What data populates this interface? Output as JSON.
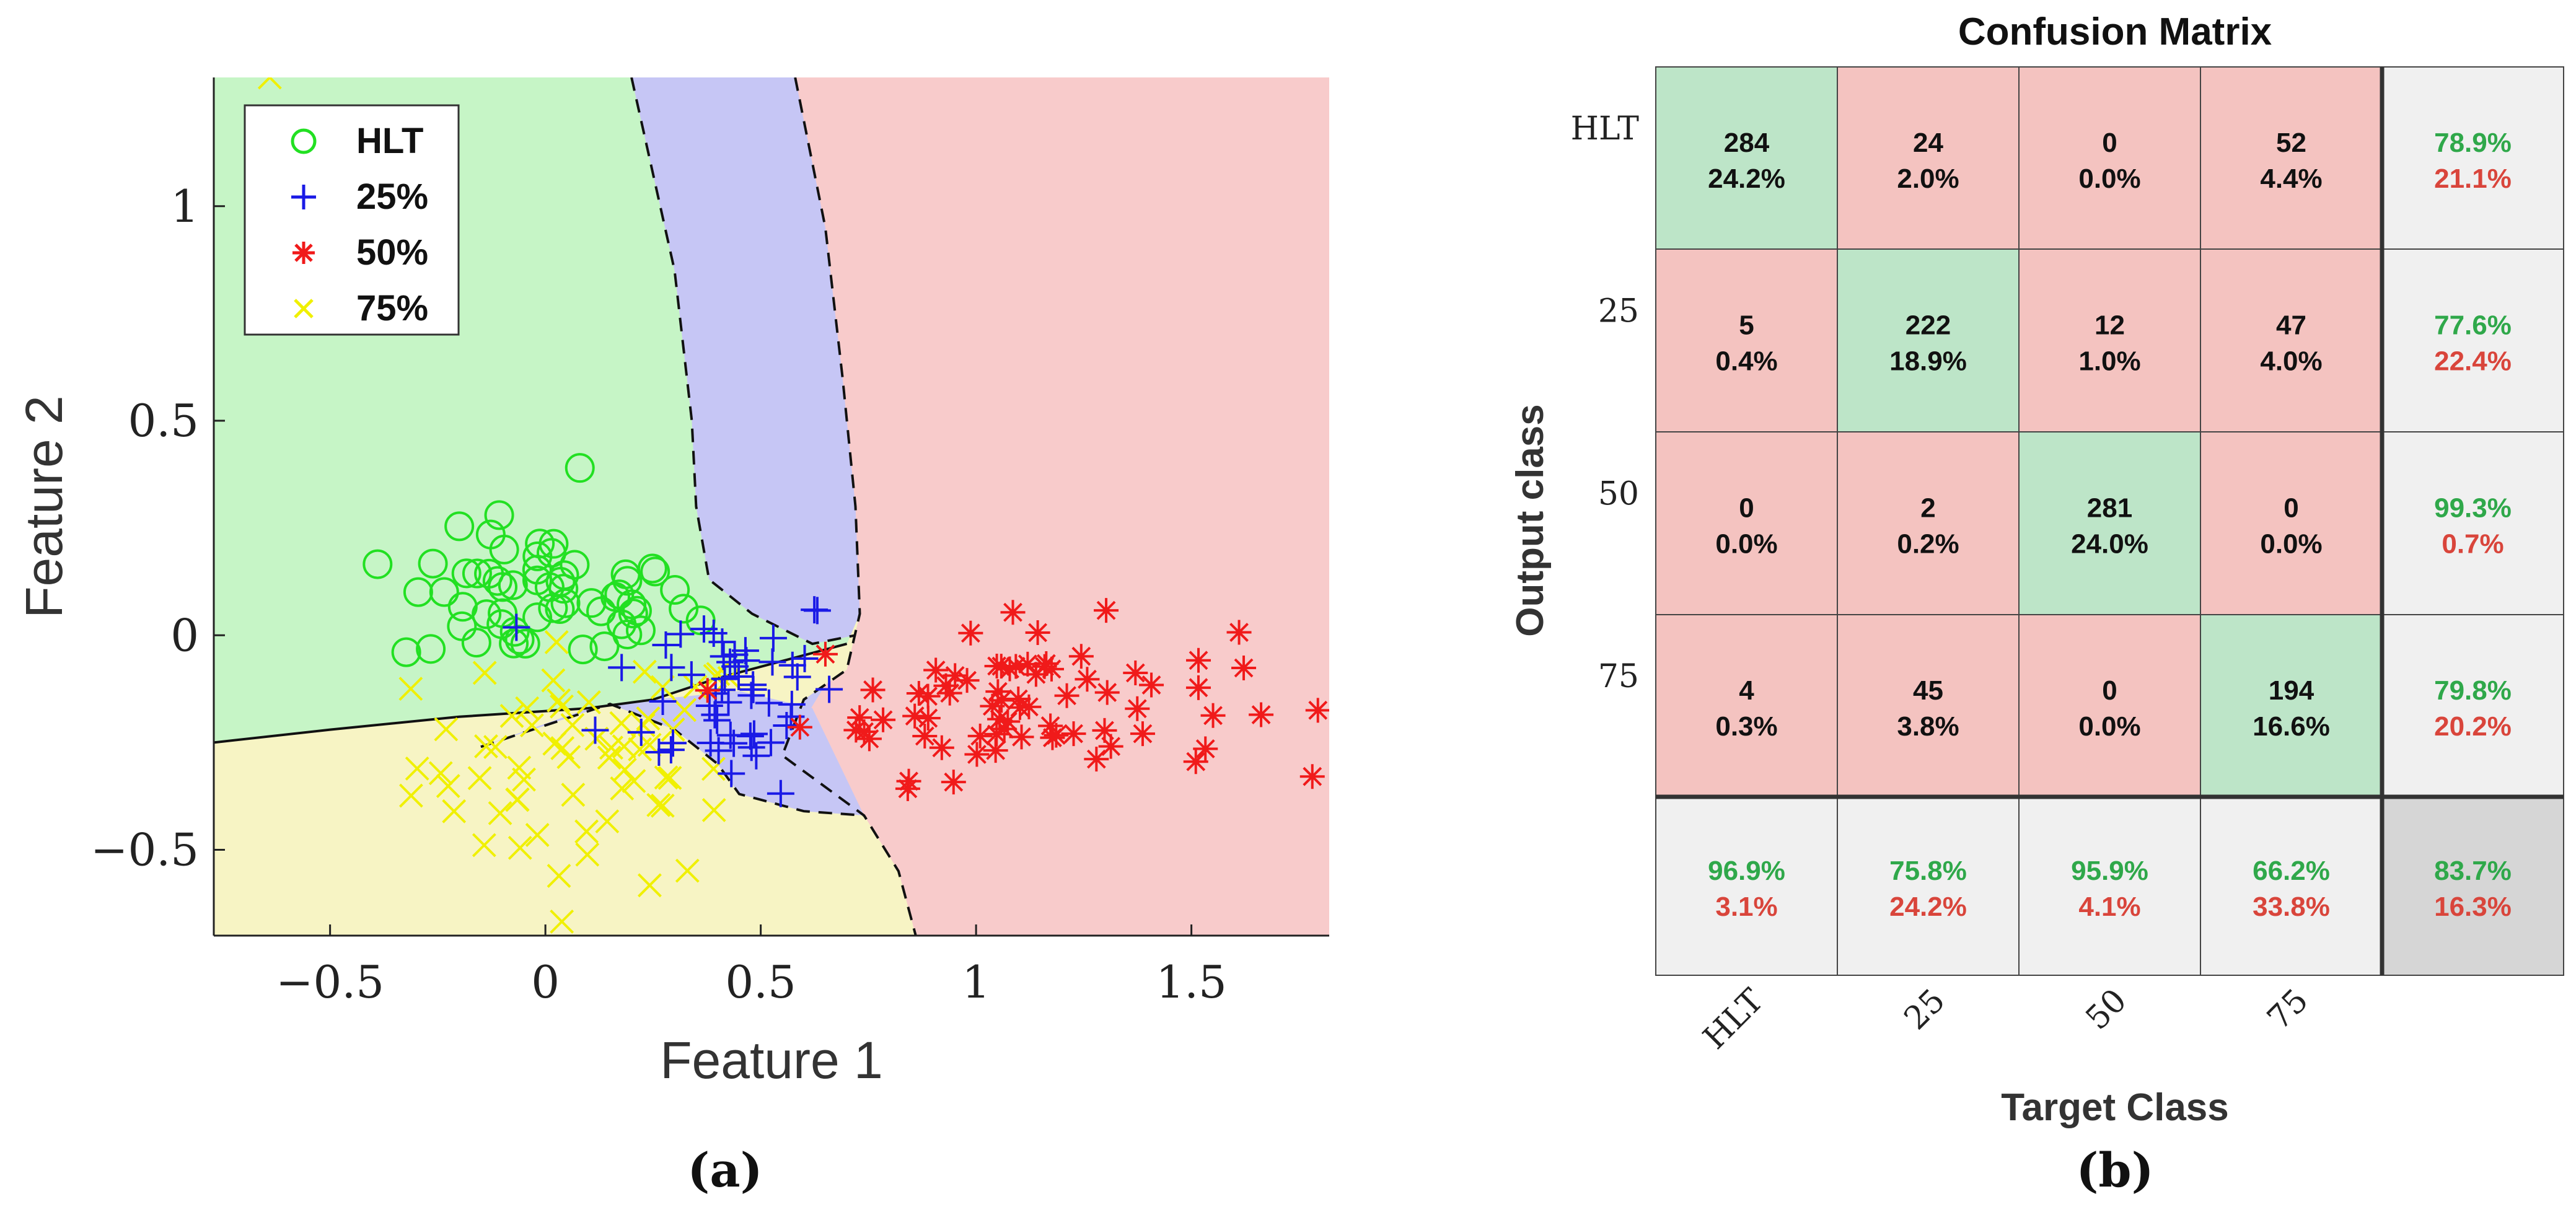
{
  "colors": {
    "region_hlt": "#c6f5c6",
    "region_25": "#c6c6f5",
    "region_50": "#f8cbcb",
    "region_75": "#f7f4c4",
    "hlt": "#22e022",
    "c25": "#1a1ae6",
    "c50": "#f01a1a",
    "c75": "#f0f000",
    "cm_correct": "#bde5c8",
    "cm_wrong": "#f4c3c0",
    "cm_summary": "#f0f0f0",
    "cm_total": "#d6d6d6",
    "pct_green": "#2fa84a",
    "pct_red": "#d9453b"
  },
  "chart_data": [
    {
      "type": "scatter",
      "panel_label": "(a)",
      "xlabel": "Feature 1",
      "ylabel": "Feature 2",
      "xlim": [
        -0.77,
        1.82
      ],
      "ylim": [
        -0.7,
        1.3
      ],
      "xticks": [
        -0.5,
        0,
        0.5,
        1,
        1.5
      ],
      "xtick_labels": [
        "−0.5",
        "0",
        "0.5",
        "1",
        "1.5"
      ],
      "yticks": [
        -0.5,
        0,
        0.5,
        1
      ],
      "ytick_labels": [
        "−0.5",
        "0",
        "0.5",
        "1"
      ],
      "legend_position": "top-left",
      "series": [
        {
          "name": "HLT",
          "marker": "circle",
          "color_key": "hlt",
          "center": [
            0.0,
            0.08
          ],
          "spread": [
            0.17,
            0.08
          ],
          "count": 60
        },
        {
          "name": "25%",
          "marker": "plus",
          "color_key": "c25",
          "center": [
            0.42,
            -0.12
          ],
          "spread": [
            0.14,
            0.12
          ],
          "count": 55
        },
        {
          "name": "50%",
          "marker": "asterisk",
          "color_key": "c50",
          "center": [
            1.1,
            -0.15
          ],
          "spread": [
            0.25,
            0.09
          ],
          "count": 75
        },
        {
          "name": "75%",
          "marker": "x",
          "color_key": "c75",
          "center": [
            0.1,
            -0.3
          ],
          "spread": [
            0.2,
            0.14
          ],
          "count": 65
        }
      ],
      "outliers": [
        {
          "series": "75%",
          "x": -0.64,
          "y": 1.3
        },
        {
          "series": "HLT",
          "x": 0.08,
          "y": 0.39
        }
      ],
      "boundaries": [
        {
          "between": "HLT/25%",
          "points": [
            [
              0.2,
              1.3
            ],
            [
              0.3,
              0.85
            ],
            [
              0.34,
              0.5
            ],
            [
              0.35,
              0.3
            ],
            [
              0.38,
              0.13
            ],
            [
              0.48,
              0.05
            ],
            [
              0.62,
              -0.02
            ],
            [
              0.72,
              0.0
            ]
          ]
        },
        {
          "between": "25%/50%",
          "points": [
            [
              0.58,
              1.3
            ],
            [
              0.65,
              0.95
            ],
            [
              0.69,
              0.6
            ],
            [
              0.72,
              0.3
            ],
            [
              0.73,
              0.05
            ],
            [
              0.7,
              -0.08
            ],
            [
              0.6,
              -0.15
            ],
            [
              0.55,
              -0.28
            ],
            [
              0.74,
              -0.42
            ],
            [
              0.82,
              -0.55
            ],
            [
              0.86,
              -0.7
            ]
          ]
        },
        {
          "between": "HLT/75%",
          "points": [
            [
              -0.77,
              -0.25
            ],
            [
              -0.5,
              -0.22
            ],
            [
              -0.2,
              -0.19
            ],
            [
              0.1,
              -0.17
            ],
            [
              0.25,
              -0.15
            ],
            [
              0.4,
              -0.1
            ],
            [
              0.55,
              -0.06
            ],
            [
              0.7,
              -0.02
            ]
          ]
        },
        {
          "between": "75%/25% pocket",
          "points": [
            [
              -0.15,
              -0.26
            ],
            [
              0.0,
              -0.21
            ],
            [
              0.15,
              -0.16
            ],
            [
              0.3,
              -0.22
            ],
            [
              0.4,
              -0.3
            ],
            [
              0.45,
              -0.37
            ],
            [
              0.6,
              -0.41
            ],
            [
              0.74,
              -0.42
            ]
          ]
        }
      ]
    },
    {
      "type": "heatmap",
      "panel_label": "(b)",
      "title": "Confusion Matrix",
      "xlabel": "Target Class",
      "ylabel": "Output class",
      "row_labels": [
        "HLT",
        "25",
        "50",
        "75"
      ],
      "col_labels": [
        "HLT",
        "25",
        "50",
        "75"
      ],
      "counts": [
        [
          284,
          24,
          0,
          52
        ],
        [
          5,
          222,
          12,
          47
        ],
        [
          0,
          2,
          281,
          0
        ],
        [
          4,
          45,
          0,
          194
        ]
      ],
      "percents": [
        [
          "24.2%",
          "2.0%",
          "0.0%",
          "4.4%"
        ],
        [
          "0.4%",
          "18.9%",
          "1.0%",
          "4.0%"
        ],
        [
          "0.0%",
          "0.2%",
          "24.0%",
          "0.0%"
        ],
        [
          "0.3%",
          "3.8%",
          "0.0%",
          "16.6%"
        ]
      ],
      "row_summary": [
        [
          "78.9%",
          "21.1%"
        ],
        [
          "77.6%",
          "22.4%"
        ],
        [
          "99.3%",
          "0.7%"
        ],
        [
          "79.8%",
          "20.2%"
        ]
      ],
      "col_summary": [
        [
          "96.9%",
          "3.1%"
        ],
        [
          "75.8%",
          "24.2%"
        ],
        [
          "95.9%",
          "4.1%"
        ],
        [
          "66.2%",
          "33.8%"
        ]
      ],
      "overall": [
        "83.7%",
        "16.3%"
      ]
    }
  ]
}
